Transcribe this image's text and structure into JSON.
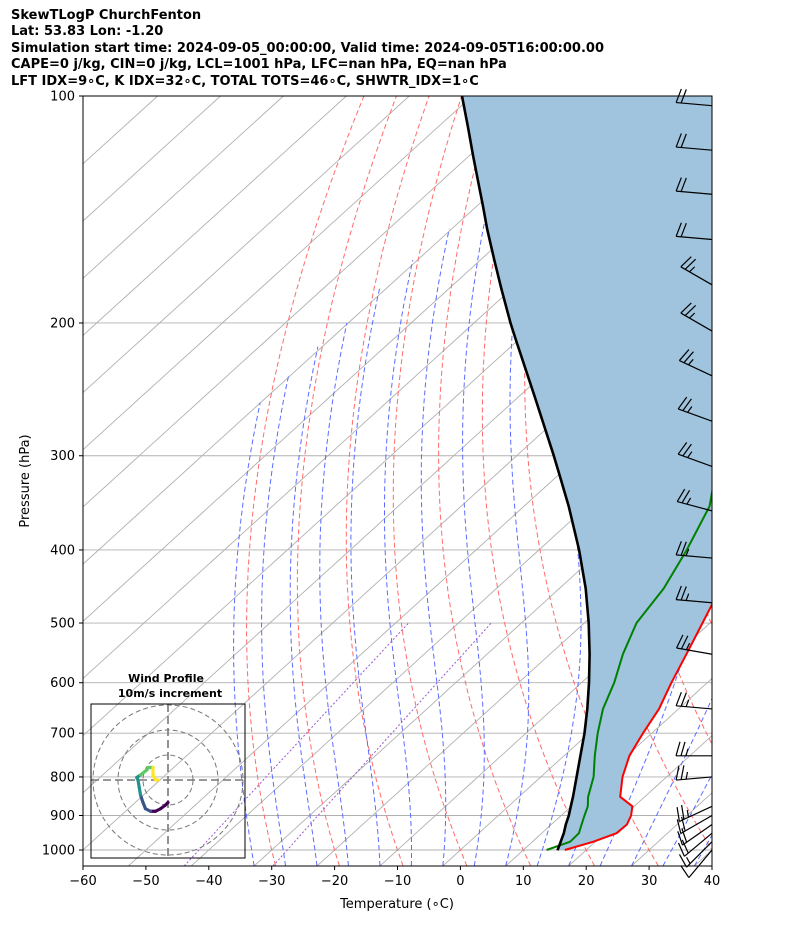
{
  "header": {
    "line1": "SkewTLogP ChurchFenton",
    "line2": "Lat: 53.83   Lon: -1.20",
    "line3": "Simulation start time: 2024-09-05_00:00:00, Valid time: 2024-09-05T16:00:00.00",
    "line4": "CAPE=0 j/kg, CIN=0 j/kg, LCL=1001 hPa, LFC=nan hPa, EQ=nan hPa",
    "line5": "LFT IDX=9∘C, K IDX=32∘C, TOTAL TOTS=46∘C, SHWTR_IDX=1∘C"
  },
  "chart_data": {
    "type": "skew-t log-p",
    "xlabel": "Temperature (∘C)",
    "ylabel": "Pressure (hPa)",
    "xlim": [
      -60,
      40
    ],
    "ylim": [
      1050,
      100
    ],
    "y_scale": "log",
    "x_ticks": [
      "−60",
      "−50",
      "−40",
      "−30",
      "−20",
      "−10",
      "0",
      "10",
      "20",
      "30",
      "40"
    ],
    "x_tick_values": [
      -60,
      -50,
      -40,
      -30,
      -20,
      -10,
      0,
      10,
      20,
      30,
      40
    ],
    "y_ticks": [
      "1000",
      "900",
      "800",
      "700",
      "600",
      "500",
      "400",
      "300",
      "200",
      "100"
    ],
    "y_tick_values": [
      1000,
      900,
      800,
      700,
      600,
      500,
      400,
      300,
      200,
      100
    ],
    "grid": true,
    "colors": {
      "temperature": "#ff0000",
      "dewpoint": "#008000",
      "parcel": "#000000",
      "shade": "#a0c4de",
      "dry_adiabats": "#ff6b6b",
      "moist_adiabats": "#5b6cff",
      "mixing_ratio": "#9b59d0",
      "isotherms": "#b0b0b0"
    },
    "series": [
      {
        "key": "temperature",
        "points": [
          [
            16.6,
            1000
          ],
          [
            19.7,
            975
          ],
          [
            21.9,
            950
          ],
          [
            22.0,
            925
          ],
          [
            21.1,
            900
          ],
          [
            19.7,
            875
          ],
          [
            16.1,
            850
          ],
          [
            13.0,
            800
          ],
          [
            10.4,
            750
          ],
          [
            8.6,
            700
          ],
          [
            6.9,
            650
          ],
          [
            4.3,
            600
          ],
          [
            1.7,
            550
          ],
          [
            -1.2,
            500
          ],
          [
            -4.4,
            450
          ],
          [
            -8.0,
            400
          ],
          [
            -12.2,
            350
          ],
          [
            -15.7,
            320
          ],
          [
            -19.2,
            300
          ],
          [
            -29.2,
            250
          ],
          [
            -40.1,
            210
          ],
          [
            -41.5,
            200
          ],
          [
            -45.4,
            180
          ],
          [
            -48.3,
            165
          ],
          [
            -51.7,
            150
          ],
          [
            -53.3,
            140
          ],
          [
            -49.5,
            130
          ],
          [
            -48.4,
            120
          ],
          [
            -47.8,
            110
          ],
          [
            -46.8,
            100
          ]
        ]
      },
      {
        "key": "dewpoint",
        "points": [
          [
            13.7,
            1000
          ],
          [
            16.0,
            975
          ],
          [
            15.9,
            950
          ],
          [
            14.8,
            925
          ],
          [
            13.7,
            900
          ],
          [
            12.6,
            875
          ],
          [
            11.0,
            850
          ],
          [
            8.4,
            800
          ],
          [
            4.9,
            750
          ],
          [
            1.4,
            700
          ],
          [
            -2.0,
            650
          ],
          [
            -4.8,
            600
          ],
          [
            -8.4,
            550
          ],
          [
            -11.7,
            500
          ],
          [
            -13.4,
            450
          ],
          [
            -16.5,
            400
          ],
          [
            -20.5,
            350
          ],
          [
            -24.8,
            320
          ],
          [
            -26.0,
            300
          ],
          [
            -37.7,
            250
          ],
          [
            -44.9,
            210
          ],
          [
            -45.7,
            200
          ],
          [
            -48.3,
            180
          ],
          [
            -51.7,
            165
          ],
          [
            -55.3,
            150
          ],
          [
            -59.0,
            140
          ],
          [
            -67.5,
            130
          ],
          [
            -66.9,
            120
          ],
          [
            -65.3,
            110
          ],
          [
            -63.1,
            100
          ]
        ]
      },
      {
        "key": "parcel",
        "points": [
          [
            15.5,
            1001
          ],
          [
            14.5,
            975
          ],
          [
            13.5,
            950
          ],
          [
            12.3,
            925
          ],
          [
            11.2,
            900
          ],
          [
            9.9,
            875
          ],
          [
            8.6,
            850
          ],
          [
            5.7,
            800
          ],
          [
            2.6,
            750
          ],
          [
            -0.7,
            700
          ],
          [
            -4.5,
            650
          ],
          [
            -8.8,
            600
          ],
          [
            -13.7,
            550
          ],
          [
            -19.3,
            500
          ],
          [
            -25.8,
            450
          ],
          [
            -33.6,
            400
          ],
          [
            -42.9,
            350
          ],
          [
            -49.4,
            320
          ],
          [
            -54.1,
            300
          ],
          [
            -67.6,
            250
          ],
          [
            -80.6,
            210
          ],
          [
            -84.2,
            200
          ],
          [
            -91.7,
            180
          ],
          [
            -97.8,
            165
          ],
          [
            -104.4,
            150
          ],
          [
            -109.0,
            140
          ],
          [
            -114.0,
            130
          ],
          [
            -119.4,
            120
          ],
          [
            -125.2,
            110
          ],
          [
            -131.6,
            100
          ]
        ]
      }
    ],
    "wind_barbs": [
      {
        "p": 1000,
        "speed_kt": 10,
        "dir_deg": 220
      },
      {
        "p": 975,
        "speed_kt": 15,
        "dir_deg": 225
      },
      {
        "p": 950,
        "speed_kt": 20,
        "dir_deg": 230
      },
      {
        "p": 925,
        "speed_kt": 20,
        "dir_deg": 235
      },
      {
        "p": 900,
        "speed_kt": 20,
        "dir_deg": 240
      },
      {
        "p": 875,
        "speed_kt": 25,
        "dir_deg": 245
      },
      {
        "p": 800,
        "speed_kt": 25,
        "dir_deg": 265
      },
      {
        "p": 750,
        "speed_kt": 25,
        "dir_deg": 270
      },
      {
        "p": 650,
        "speed_kt": 25,
        "dir_deg": 275
      },
      {
        "p": 550,
        "speed_kt": 25,
        "dir_deg": 280
      },
      {
        "p": 470,
        "speed_kt": 25,
        "dir_deg": 275
      },
      {
        "p": 410,
        "speed_kt": 25,
        "dir_deg": 275
      },
      {
        "p": 355,
        "speed_kt": 25,
        "dir_deg": 285
      },
      {
        "p": 310,
        "speed_kt": 25,
        "dir_deg": 290
      },
      {
        "p": 270,
        "speed_kt": 25,
        "dir_deg": 290
      },
      {
        "p": 235,
        "speed_kt": 25,
        "dir_deg": 295
      },
      {
        "p": 205,
        "speed_kt": 25,
        "dir_deg": 300
      },
      {
        "p": 178,
        "speed_kt": 25,
        "dir_deg": 300
      },
      {
        "p": 155,
        "speed_kt": 20,
        "dir_deg": 275
      },
      {
        "p": 135,
        "speed_kt": 20,
        "dir_deg": 275
      },
      {
        "p": 118,
        "speed_kt": 20,
        "dir_deg": 275
      },
      {
        "p": 103,
        "speed_kt": 20,
        "dir_deg": 275
      }
    ],
    "hodograph": {
      "title_line1": "Wind Profile",
      "title_line2": "10m/s increment",
      "ring_step_ms": 10,
      "rings": 3,
      "uv_ms": [
        [
          0,
          -9
        ],
        [
          -1,
          -10
        ],
        [
          -3,
          -11.5
        ],
        [
          -5,
          -12.5
        ],
        [
          -7,
          -12.5
        ],
        [
          -9,
          -11.5
        ],
        [
          -10,
          -9
        ],
        [
          -11,
          -6
        ],
        [
          -11.5,
          -3
        ],
        [
          -12,
          0
        ],
        [
          -12.5,
          1
        ],
        [
          -11,
          2
        ],
        [
          -8.5,
          4
        ],
        [
          -8,
          5
        ],
        [
          -6,
          5
        ],
        [
          -6,
          2
        ],
        [
          -5,
          0
        ],
        [
          -4,
          0
        ]
      ],
      "colormap": [
        "#440154",
        "#3b528b",
        "#21918c",
        "#5ec962",
        "#fde725"
      ]
    }
  }
}
